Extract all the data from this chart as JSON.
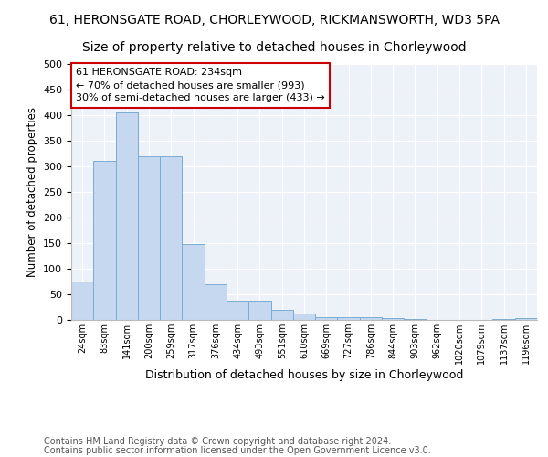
{
  "title1": "61, HERONSGATE ROAD, CHORLEYWOOD, RICKMANSWORTH, WD3 5PA",
  "title2": "Size of property relative to detached houses in Chorleywood",
  "xlabel": "Distribution of detached houses by size in Chorleywood",
  "ylabel": "Number of detached properties",
  "bar_labels": [
    "24sqm",
    "83sqm",
    "141sqm",
    "200sqm",
    "259sqm",
    "317sqm",
    "376sqm",
    "434sqm",
    "493sqm",
    "551sqm",
    "610sqm",
    "669sqm",
    "727sqm",
    "786sqm",
    "844sqm",
    "903sqm",
    "962sqm",
    "1020sqm",
    "1079sqm",
    "1137sqm",
    "1196sqm"
  ],
  "bar_values": [
    75,
    310,
    405,
    320,
    320,
    148,
    70,
    37,
    37,
    20,
    13,
    5,
    5,
    5,
    3,
    2,
    0,
    0,
    0,
    2,
    3
  ],
  "bar_color": "#c5d8ef",
  "bar_edge_color": "#7aadd4",
  "annotation_line1": "61 HERONSGATE ROAD: 234sqm",
  "annotation_line2": "← 70% of detached houses are smaller (993)",
  "annotation_line3": "30% of semi-detached houses are larger (433) →",
  "annotation_box_facecolor": "#ffffff",
  "annotation_box_edgecolor": "#cc0000",
  "ylim": [
    0,
    500
  ],
  "yticks": [
    0,
    50,
    100,
    150,
    200,
    250,
    300,
    350,
    400,
    450,
    500
  ],
  "footer_line1": "Contains HM Land Registry data © Crown copyright and database right 2024.",
  "footer_line2": "Contains public sector information licensed under the Open Government Licence v3.0.",
  "bg_color": "#edf2f9",
  "grid_color": "#ffffff",
  "title1_fontsize": 10,
  "title2_fontsize": 10,
  "ylabel_fontsize": 8.5,
  "xlabel_fontsize": 9,
  "tick_fontsize": 8,
  "xtick_fontsize": 7,
  "annotation_fontsize": 8,
  "footer_fontsize": 7
}
